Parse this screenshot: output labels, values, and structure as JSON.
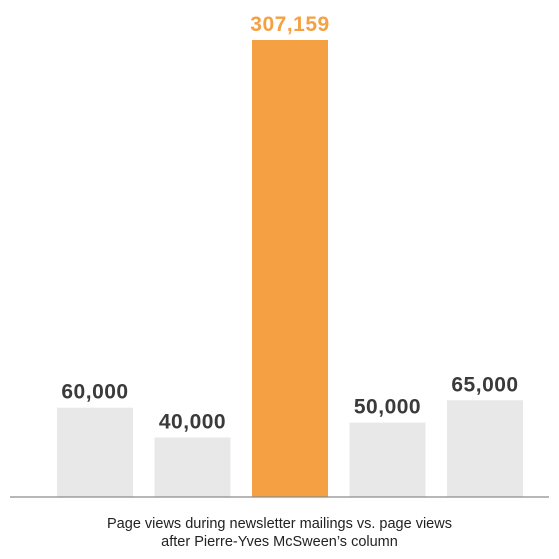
{
  "chart_data": {
    "type": "bar",
    "categories": [
      "",
      "",
      "",
      "",
      ""
    ],
    "values": [
      60000,
      40000,
      307159,
      50000,
      65000
    ],
    "value_labels": [
      "60,000",
      "40,000",
      "307,159",
      "50,000",
      "65,000"
    ],
    "highlight_index": 2,
    "colors": {
      "default_bar": "#e8e8e8",
      "highlight_bar": "#f5a043",
      "default_label": "#3a3a3a",
      "highlight_label": "#f5a043",
      "baseline": "#8c8c8c"
    },
    "title": "",
    "xlabel": "",
    "ylabel": "",
    "ylim": [
      0,
      307159
    ],
    "grid": false,
    "legend": "none"
  },
  "caption": {
    "line1": "Page views during newsletter mailings vs. page views",
    "line2": "after Pierre-Yves McSween’s column"
  }
}
